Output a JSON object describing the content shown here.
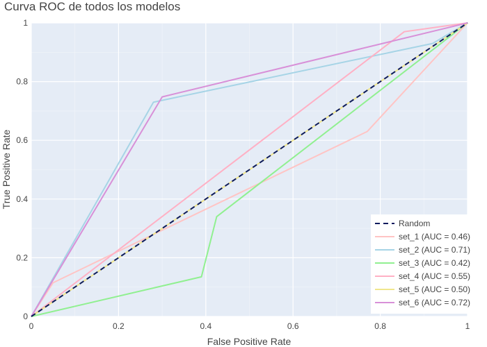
{
  "chart_data": {
    "type": "line",
    "title": "Curva ROC de todos los modelos",
    "xlabel": "False Positive Rate",
    "ylabel": "True Positive Rate",
    "xlim": [
      0,
      1
    ],
    "ylim": [
      0,
      1
    ],
    "x_ticks": [
      "0",
      "0.2",
      "0.4",
      "0.6",
      "0.8",
      "1"
    ],
    "y_ticks": [
      "0",
      "0.2",
      "0.4",
      "0.6",
      "0.8",
      "1"
    ],
    "grid": true,
    "legend_position": "bottom-right",
    "background_color": "#e5ecf6",
    "series": [
      {
        "name": "Random",
        "color": "#0d1b5e",
        "dash": true,
        "x": [
          0,
          1
        ],
        "y": [
          0,
          1
        ]
      },
      {
        "name": "set_1 (AUC = 0.46)",
        "color": "#ffc4c4",
        "x": [
          0,
          0.05,
          0.77,
          1
        ],
        "y": [
          0,
          0.115,
          0.63,
          1
        ]
      },
      {
        "name": "set_2 (AUC = 0.71)",
        "color": "#a6d4e6",
        "x": [
          0,
          0.28,
          0.92,
          1
        ],
        "y": [
          0,
          0.73,
          0.93,
          1
        ]
      },
      {
        "name": "set_3 (AUC = 0.42)",
        "color": "#90f090",
        "x": [
          0,
          0.39,
          0.425,
          1
        ],
        "y": [
          0,
          0.135,
          0.34,
          1
        ]
      },
      {
        "name": "set_4 (AUC = 0.55)",
        "color": "#ffb0c4",
        "x": [
          0,
          0.855,
          1
        ],
        "y": [
          0,
          0.97,
          1
        ]
      },
      {
        "name": "set_5 (AUC = 0.50)",
        "color": "#f0e68c",
        "x": [
          0,
          1
        ],
        "y": [
          0,
          1
        ]
      },
      {
        "name": "set_6 (AUC = 0.72)",
        "color": "#d890d8",
        "x": [
          0,
          0.3,
          1
        ],
        "y": [
          0,
          0.748,
          1
        ]
      }
    ]
  }
}
